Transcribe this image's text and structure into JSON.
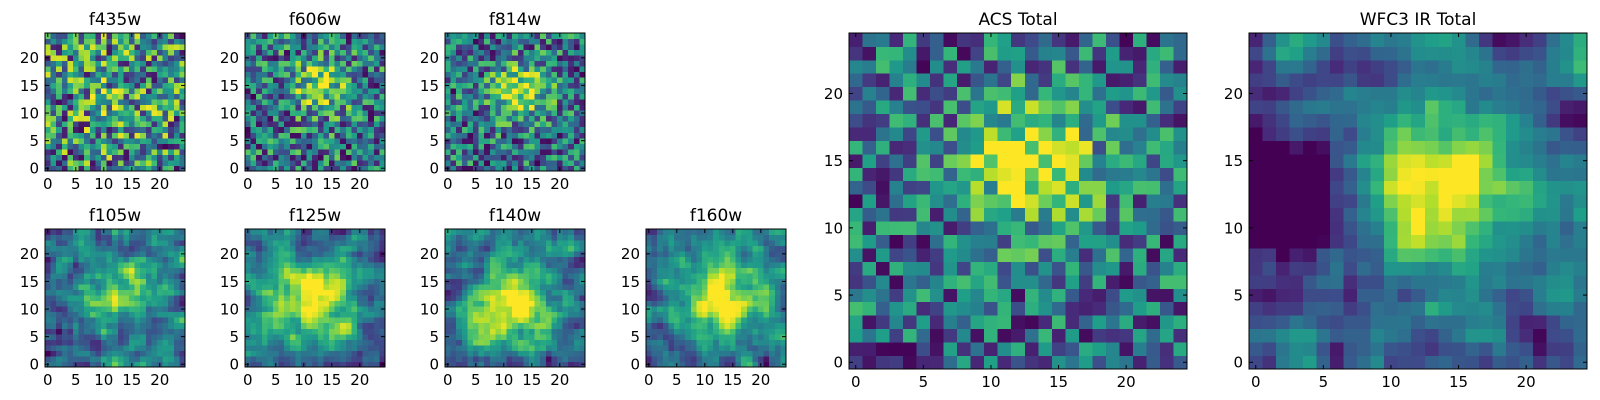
{
  "chart_data": [
    {
      "type": "heatmap",
      "title": "f435w",
      "xlim": [
        0,
        24
      ],
      "ylim": [
        0,
        24
      ],
      "x_ticks": [
        0,
        5,
        10,
        15,
        20
      ],
      "y_ticks": [
        0,
        5,
        10,
        15,
        20
      ],
      "x_tick_labels": [
        "0",
        "5",
        "10",
        "15",
        "20"
      ],
      "y_tick_labels": [
        "0",
        "5",
        "10",
        "15",
        "20"
      ],
      "colormap": "viridis",
      "grid_size": 25,
      "grid": false,
      "seed": 11,
      "blur": 0,
      "peak": 0.06,
      "sigma": 5,
      "center": [
        12,
        13
      ]
    },
    {
      "type": "heatmap",
      "title": "f606w",
      "xlim": [
        0,
        24
      ],
      "ylim": [
        0,
        24
      ],
      "x_ticks": [
        0,
        5,
        10,
        15,
        20
      ],
      "y_ticks": [
        0,
        5,
        10,
        15,
        20
      ],
      "x_tick_labels": [
        "0",
        "5",
        "10",
        "15",
        "20"
      ],
      "y_tick_labels": [
        "0",
        "5",
        "10",
        "15",
        "20"
      ],
      "colormap": "viridis",
      "grid_size": 25,
      "grid": false,
      "seed": 23,
      "blur": 0,
      "peak": 0.22,
      "sigma": 3.5,
      "center": [
        13,
        15
      ]
    },
    {
      "type": "heatmap",
      "title": "f814w",
      "xlim": [
        0,
        24
      ],
      "ylim": [
        0,
        24
      ],
      "x_ticks": [
        0,
        5,
        10,
        15,
        20
      ],
      "y_ticks": [
        0,
        5,
        10,
        15,
        20
      ],
      "x_tick_labels": [
        "0",
        "5",
        "10",
        "15",
        "20"
      ],
      "y_tick_labels": [
        "0",
        "5",
        "10",
        "15",
        "20"
      ],
      "colormap": "viridis",
      "grid_size": 25,
      "grid": false,
      "seed": 37,
      "blur": 0,
      "peak": 0.26,
      "sigma": 3.5,
      "center": [
        13,
        14
      ]
    },
    {
      "type": "heatmap",
      "title": "f105w",
      "xlim": [
        0,
        24
      ],
      "ylim": [
        0,
        24
      ],
      "x_ticks": [
        0,
        5,
        10,
        15,
        20
      ],
      "y_ticks": [
        0,
        5,
        10,
        15,
        20
      ],
      "x_tick_labels": [
        "0",
        "5",
        "10",
        "15",
        "20"
      ],
      "y_tick_labels": [
        "0",
        "5",
        "10",
        "15",
        "20"
      ],
      "colormap": "viridis",
      "grid_size": 25,
      "grid": false,
      "seed": 41,
      "blur": 1,
      "peak": 0.22,
      "sigma": 4.5,
      "center": [
        13,
        13
      ]
    },
    {
      "type": "heatmap",
      "title": "f125w",
      "xlim": [
        0,
        24
      ],
      "ylim": [
        0,
        24
      ],
      "x_ticks": [
        0,
        5,
        10,
        15,
        20
      ],
      "y_ticks": [
        0,
        5,
        10,
        15,
        20
      ],
      "x_tick_labels": [
        "0",
        "5",
        "10",
        "15",
        "20"
      ],
      "y_tick_labels": [
        "0",
        "5",
        "10",
        "15",
        "20"
      ],
      "colormap": "viridis",
      "grid_size": 25,
      "grid": false,
      "seed": 53,
      "blur": 1,
      "peak": 0.28,
      "sigma": 5,
      "center": [
        12,
        12
      ]
    },
    {
      "type": "heatmap",
      "title": "f140w",
      "xlim": [
        0,
        24
      ],
      "ylim": [
        0,
        24
      ],
      "x_ticks": [
        0,
        5,
        10,
        15,
        20
      ],
      "y_ticks": [
        0,
        5,
        10,
        15,
        20
      ],
      "x_tick_labels": [
        "0",
        "5",
        "10",
        "15",
        "20"
      ],
      "y_tick_labels": [
        "0",
        "5",
        "10",
        "15",
        "20"
      ],
      "colormap": "viridis",
      "grid_size": 25,
      "grid": false,
      "seed": 67,
      "blur": 1,
      "peak": 0.3,
      "sigma": 5,
      "center": [
        11,
        11
      ]
    },
    {
      "type": "heatmap",
      "title": "f160w",
      "xlim": [
        0,
        24
      ],
      "ylim": [
        0,
        24
      ],
      "x_ticks": [
        0,
        5,
        10,
        15,
        20
      ],
      "y_ticks": [
        0,
        5,
        10,
        15,
        20
      ],
      "x_tick_labels": [
        "0",
        "5",
        "10",
        "15",
        "20"
      ],
      "y_tick_labels": [
        "0",
        "5",
        "10",
        "15",
        "20"
      ],
      "colormap": "viridis",
      "grid_size": 25,
      "grid": false,
      "seed": 79,
      "blur": 1,
      "peak": 0.32,
      "sigma": 5,
      "center": [
        13,
        12
      ]
    },
    {
      "type": "heatmap",
      "title": "ACS Total",
      "xlim": [
        0,
        24
      ],
      "ylim": [
        0,
        24
      ],
      "x_ticks": [
        0,
        5,
        10,
        15,
        20
      ],
      "y_ticks": [
        0,
        5,
        10,
        15,
        20
      ],
      "x_tick_labels": [
        "0",
        "5",
        "10",
        "15",
        "20"
      ],
      "y_tick_labels": [
        "0",
        "5",
        "10",
        "15",
        "20"
      ],
      "colormap": "viridis",
      "grid_size": 25,
      "grid": false,
      "seed": 97,
      "blur": 0,
      "peak": 0.3,
      "sigma": 3.5,
      "center": [
        13,
        15
      ]
    },
    {
      "type": "heatmap",
      "title": "WFC3 IR Total",
      "xlim": [
        0,
        24
      ],
      "ylim": [
        0,
        24
      ],
      "x_ticks": [
        0,
        5,
        10,
        15,
        20
      ],
      "y_ticks": [
        0,
        5,
        10,
        15,
        20
      ],
      "x_tick_labels": [
        "0",
        "5",
        "10",
        "15",
        "20"
      ],
      "y_tick_labels": [
        "0",
        "5",
        "10",
        "15",
        "20"
      ],
      "colormap": "viridis",
      "grid_size": 25,
      "grid": false,
      "seed": 113,
      "blur": 1,
      "peak": 0.32,
      "sigma": 4.5,
      "center": [
        13,
        13
      ],
      "dark_region": [
        3,
        12,
        4
      ]
    }
  ]
}
